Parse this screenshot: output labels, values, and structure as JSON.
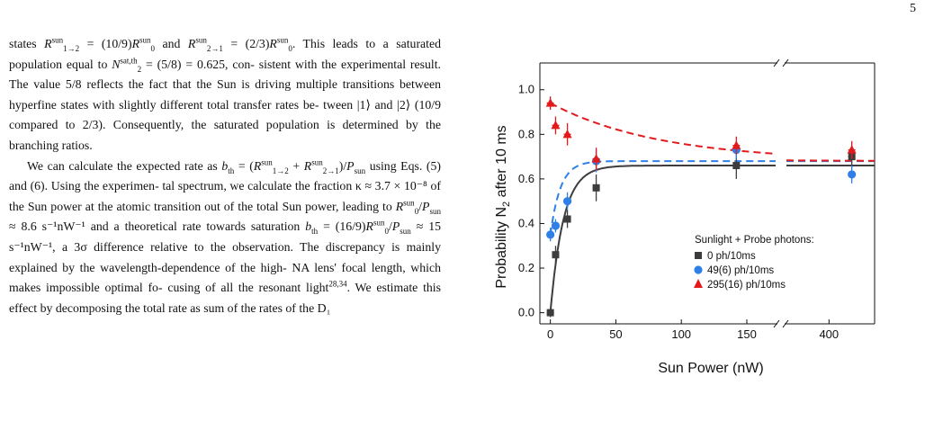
{
  "page": {
    "number": "5"
  },
  "text": {
    "p1_l1_a": "states ",
    "p1_l1_b": " = (10/9)",
    "p1_l1_c": " and ",
    "p1_l1_d": " = (2/3)",
    "p1_l1_e": ". This leads",
    "p1_l2_a": "to a saturated population equal to ",
    "p1_l2_b": " = (5/8) = 0.625, con-",
    "p1_l3": "sistent with the experimental result. The value 5/8 reflects",
    "p1_l4": "the fact that the Sun is driving multiple transitions between",
    "p1_l5": "hyperfine states with slightly different total transfer rates be-",
    "p1_l6": "tween |1⟩ and |2⟩ (10/9 compared to 2/3). Consequently, the",
    "p1_l7": "saturated population is determined by the branching ratios.",
    "p2_l1_a": "We can calculate the expected rate as ",
    "p2_l1_b": " = (",
    "p2_l1_c": " +",
    "p2_l2_a": ")/",
    "p2_l2_b": " using Eqs. (5) and (6). Using the experimen-",
    "p2_l3": "tal spectrum, we calculate the fraction κ ≈ 3.7 × 10⁻⁸ of",
    "p2_l4_a": "the Sun power at the atomic transition out of the total Sun",
    "p2_l5_a": "power, leading to ",
    "p2_l5_b": " ≈ 8.6 s⁻¹nW⁻¹ and a theoretical",
    "p2_l6_a": "rate towards saturation ",
    "p2_l6_b": " = (16/9)",
    "p2_l6_c": " ≈ 15 s⁻¹nW⁻¹,",
    "p2_l7": "a 3σ difference relative to the observation. The discrepancy is",
    "p2_l8": "mainly explained by the wavelength-dependence of the high-",
    "p2_l9": "NA lens' focal length, which makes impossible optimal fo-",
    "p2_l10_a": "cusing of all the resonant light",
    "p2_l10_ref": "28,34",
    "p2_l10_b": ". We estimate this effect",
    "p2_l11": "by decomposing the total rate as sum of the rates of the D₁"
  },
  "math": {
    "R": "R",
    "sun": "sun",
    "i12": "1→2",
    "i21": "2→1",
    "zero": "0",
    "N": "N",
    "two": "2",
    "satth": "sat,th",
    "b": "b",
    "th": "th",
    "P": "P"
  },
  "chart_data": {
    "type": "scatter",
    "xlabel": "Sun Power (nW)",
    "ylabel": "Probability N",
    "ylabel_sub": "2",
    "ylabel_tail": " after 10 ms",
    "x_ticks": [
      "0",
      "50",
      "100",
      "150",
      "400"
    ],
    "y_ticks": [
      "0.0",
      "0.2",
      "0.4",
      "0.6",
      "0.8",
      "1.0"
    ],
    "ylim": [
      -0.05,
      1.12
    ],
    "x_broken_axis": {
      "segment1": [
        -8,
        172
      ],
      "segment2": [
        372,
        430
      ]
    },
    "legend": {
      "title": "Sunlight + Probe photons:",
      "placement": "lower-right"
    },
    "series": [
      {
        "name": "0 ph/10ms",
        "marker": "square",
        "color": "#3d3d3d",
        "x": [
          0,
          4,
          13,
          35,
          142,
          415
        ],
        "y": [
          0.0,
          0.26,
          0.42,
          0.56,
          0.66,
          0.7
        ],
        "err": [
          0.02,
          0.04,
          0.04,
          0.06,
          0.06,
          0.05
        ]
      },
      {
        "name": "49(6) ph/10ms",
        "marker": "circle",
        "color": "#2f7fe8",
        "x": [
          0,
          4,
          13,
          35,
          142,
          415
        ],
        "y": [
          0.35,
          0.39,
          0.5,
          0.68,
          0.73,
          0.62
        ],
        "err": [
          0.03,
          0.03,
          0.04,
          0.05,
          0.04,
          0.04
        ]
      },
      {
        "name": "295(16) ph/10ms",
        "marker": "triangle",
        "color": "#e31a1c",
        "x": [
          0,
          4,
          13,
          35,
          142,
          415
        ],
        "y": [
          0.94,
          0.84,
          0.8,
          0.69,
          0.75,
          0.73
        ],
        "err": [
          0.03,
          0.04,
          0.05,
          0.05,
          0.04,
          0.04
        ]
      }
    ],
    "fits": [
      {
        "series": "0 ph/10ms",
        "style": "solid",
        "color": "#3d3d3d",
        "start": 0.0,
        "end": 0.66,
        "rate": 0.1
      },
      {
        "series": "49(6) ph/10ms",
        "style": "dashed",
        "color": "#2f7fe8",
        "start": 0.35,
        "end": 0.68,
        "rate": 0.13
      },
      {
        "series": "295(16) ph/10ms",
        "style": "dashed",
        "color": "#e31a1c",
        "start": 0.94,
        "end": 0.68,
        "rate": 0.012
      }
    ]
  }
}
